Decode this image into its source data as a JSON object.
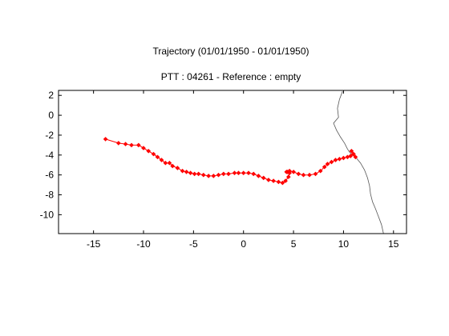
{
  "chart_data": {
    "type": "line",
    "title": "Trajectory (01/01/1950 - 01/01/1950)",
    "subtitle": "PTT : 04261 - Reference : empty",
    "xlabel": "",
    "ylabel": "",
    "xlim": [
      -18.5,
      16.3
    ],
    "ylim": [
      -11.9,
      2.5
    ],
    "xticks": [
      -15,
      -10,
      -5,
      0,
      5,
      10,
      15
    ],
    "yticks": [
      2,
      0,
      -2,
      -4,
      -6,
      -8,
      -10
    ],
    "grid": false,
    "colors": {
      "track": "#ff0000",
      "coastline": "#555555",
      "axes": "#000000"
    },
    "series": [
      {
        "x": [
          -13.8,
          -12.5,
          -11.8,
          -11.2,
          -10.5,
          -10.0,
          -9.5,
          -9.0,
          -8.6,
          -8.2,
          -7.8,
          -7.4,
          -7.1,
          -6.6,
          -6.1,
          -5.7,
          -5.3,
          -4.9,
          -4.5,
          -4.0,
          -3.5,
          -3.0,
          -2.5,
          -2.0,
          -1.5,
          -0.9,
          -0.5,
          0.0,
          0.5,
          1.0,
          1.5,
          2.0,
          2.5,
          3.0,
          3.5,
          3.9,
          4.2,
          4.5,
          4.6,
          4.4,
          4.3,
          4.6,
          5.0,
          5.5,
          6.0,
          6.6,
          7.2,
          7.7,
          8.1,
          8.4,
          8.8,
          9.2,
          9.6,
          10.0,
          10.4,
          10.7,
          11.0,
          10.8,
          11.0,
          11.2
        ],
        "y": [
          -2.4,
          -2.8,
          -2.9,
          -3.0,
          -3.0,
          -3.3,
          -3.6,
          -3.9,
          -4.2,
          -4.5,
          -4.8,
          -4.8,
          -5.1,
          -5.3,
          -5.6,
          -5.7,
          -5.8,
          -5.9,
          -5.9,
          -6.0,
          -6.1,
          -6.1,
          -6.0,
          -5.9,
          -5.9,
          -5.8,
          -5.8,
          -5.8,
          -5.8,
          -5.9,
          -6.1,
          -6.3,
          -6.5,
          -6.6,
          -6.7,
          -6.8,
          -6.6,
          -6.2,
          -5.8,
          -5.7,
          -5.7,
          -5.6,
          -5.7,
          -5.9,
          -6.0,
          -6.0,
          -5.9,
          -5.6,
          -5.2,
          -4.9,
          -4.7,
          -4.5,
          -4.4,
          -4.3,
          -4.2,
          -4.1,
          -3.9,
          -3.6,
          -3.9,
          -4.2
        ]
      }
    ],
    "coastline": {
      "x": [
        9.9,
        9.6,
        9.4,
        9.5,
        9.0,
        9.3,
        9.7,
        10.1,
        10.4,
        10.6,
        10.8,
        11.2,
        11.7,
        12.1,
        12.4,
        12.6,
        12.7,
        12.9,
        13.2,
        13.5,
        13.8,
        14.0
      ],
      "y": [
        2.4,
        1.6,
        0.7,
        -0.2,
        -0.8,
        -1.5,
        -2.2,
        -2.8,
        -3.4,
        -3.7,
        -3.9,
        -4.2,
        -4.8,
        -5.5,
        -6.3,
        -7.1,
        -7.9,
        -8.7,
        -9.4,
        -10.2,
        -11.0,
        -11.9
      ]
    }
  }
}
